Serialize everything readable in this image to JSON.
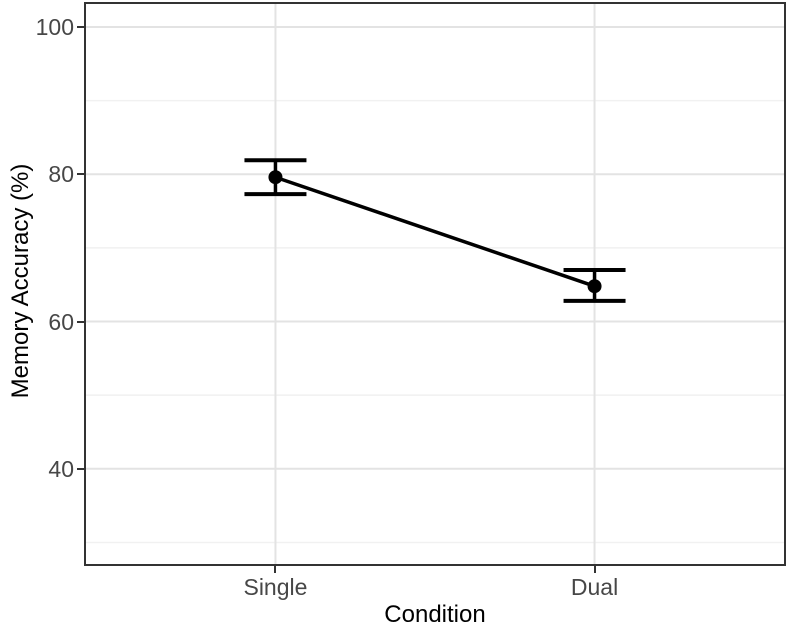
{
  "chart_data": {
    "type": "line",
    "title": "",
    "xlabel": "Condition",
    "ylabel": "Memory Accuracy (%)",
    "categories": [
      "Single",
      "Dual"
    ],
    "series": [
      {
        "name": "Memory Accuracy",
        "means": [
          79.6,
          64.8
        ],
        "ci_low": [
          77.3,
          62.8
        ],
        "ci_high": [
          81.9,
          67.0
        ]
      }
    ],
    "ylim": [
      26.8,
      103.4
    ],
    "yticks": [
      40,
      60,
      80,
      100
    ],
    "ytick_labels": [
      "40",
      "60",
      "80",
      "100"
    ],
    "yticks_minor": [
      30,
      50,
      70,
      90
    ],
    "grid": "major+minor horizontal, vertical at categories",
    "legend": "none"
  },
  "colors": {
    "background": "#ffffff",
    "panel_border": "#333333",
    "grid_major": "#e3e3e3",
    "grid_minor": "#f1f1f1",
    "tick_mark": "#333333",
    "tick_label": "#474747",
    "axis_title": "#000000",
    "data": "#000000"
  }
}
